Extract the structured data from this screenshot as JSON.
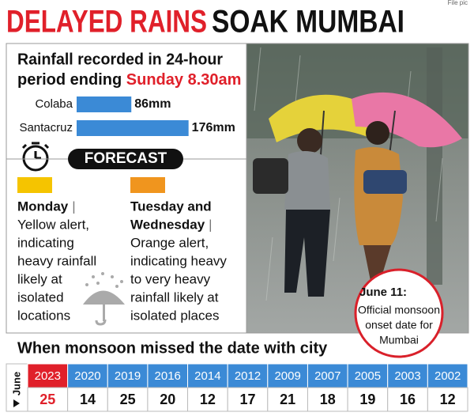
{
  "header": {
    "credit": "File pic",
    "title_red": "DELAYED RAINS",
    "title_black": "SOAK MUMBAI"
  },
  "rainfall": {
    "title": "Rainfall recorded in 24-hour",
    "title_2": "period ending",
    "title_highlight": "Sunday 8.30am",
    "categories": [
      "Colaba",
      "Santacruz"
    ],
    "values": [
      86,
      176
    ],
    "value_labels": [
      "86mm",
      "176mm"
    ],
    "color": "#3b8ad6"
  },
  "forecast": {
    "label": "FORECAST",
    "items": [
      {
        "color": "#f5c400",
        "day_lines": [
          "Monday"
        ],
        "separator": "|",
        "lines": [
          "Yellow alert,",
          "indicating",
          "heavy rainfall",
          "likely at",
          "isolated",
          "locations"
        ]
      },
      {
        "color": "#f0951e",
        "day_lines": [
          "Tuesday and",
          "Wednesday"
        ],
        "separator": "|",
        "lines": [
          "Orange alert,",
          "indicating heavy",
          "to very heavy",
          "rainfall likely at",
          "isolated places"
        ]
      }
    ]
  },
  "photo_note": {
    "title": "June 11:",
    "lines": [
      "Official monsoon",
      "onset date for",
      "Mumbai"
    ]
  },
  "table": {
    "title": "When monsoon missed the date with city",
    "row_label": "June",
    "years": [
      "2023",
      "2020",
      "2019",
      "2016",
      "2014",
      "2012",
      "2009",
      "2007",
      "2005",
      "2003",
      "2002"
    ],
    "days": [
      "25",
      "14",
      "25",
      "20",
      "12",
      "17",
      "21",
      "18",
      "19",
      "16",
      "12"
    ]
  }
}
